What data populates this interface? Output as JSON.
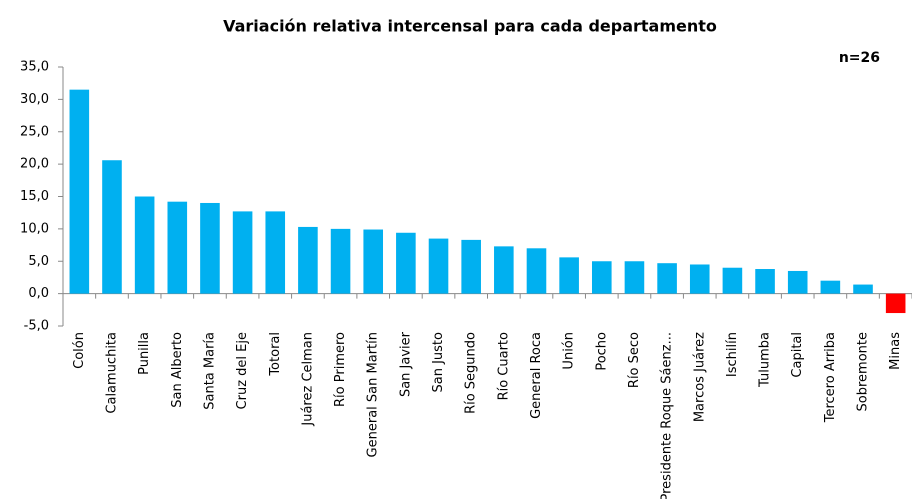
{
  "chart_data": {
    "type": "bar",
    "title": "Variación relativa intercensal para cada departamento",
    "annotation": "n=26",
    "categories": [
      "Colón",
      "Calamuchita",
      "Punilla",
      "San Alberto",
      "Santa María",
      "Cruz del Eje",
      "Totoral",
      "Juárez Celman",
      "Río Primero",
      "General San Martín",
      "San Javier",
      "San Justo",
      "Río Segundo",
      "Río Cuarto",
      "General Roca",
      "Unión",
      "Pocho",
      "Río Seco",
      "Presidente Roque Sáenz...",
      "Marcos Juárez",
      "Ischilín",
      "Tulumba",
      "Capital",
      "Tercero Arriba",
      "Sobremonte",
      "Minas"
    ],
    "values": [
      31.5,
      20.6,
      15.0,
      14.2,
      14.0,
      12.7,
      12.7,
      10.3,
      10.0,
      9.9,
      9.4,
      8.5,
      8.3,
      7.3,
      7.0,
      5.6,
      5.0,
      5.0,
      4.7,
      4.5,
      4.0,
      3.8,
      3.5,
      2.0,
      1.4,
      -3.0
    ],
    "colors": [
      "#00b0f0",
      "#00b0f0",
      "#00b0f0",
      "#00b0f0",
      "#00b0f0",
      "#00b0f0",
      "#00b0f0",
      "#00b0f0",
      "#00b0f0",
      "#00b0f0",
      "#00b0f0",
      "#00b0f0",
      "#00b0f0",
      "#00b0f0",
      "#00b0f0",
      "#00b0f0",
      "#00b0f0",
      "#00b0f0",
      "#00b0f0",
      "#00b0f0",
      "#00b0f0",
      "#00b0f0",
      "#00b0f0",
      "#00b0f0",
      "#00b0f0",
      "#ff0000"
    ],
    "ylim": [
      -5,
      35
    ],
    "yticks": [
      {
        "value": -5,
        "label": "-5,0"
      },
      {
        "value": 0,
        "label": "0,0"
      },
      {
        "value": 5,
        "label": "5,0"
      },
      {
        "value": 10,
        "label": "10,0"
      },
      {
        "value": 15,
        "label": "15,0"
      },
      {
        "value": 20,
        "label": "20,0"
      },
      {
        "value": 25,
        "label": "25,0"
      },
      {
        "value": 30,
        "label": "30,0"
      },
      {
        "value": 35,
        "label": "35,0"
      }
    ],
    "grid": false
  }
}
